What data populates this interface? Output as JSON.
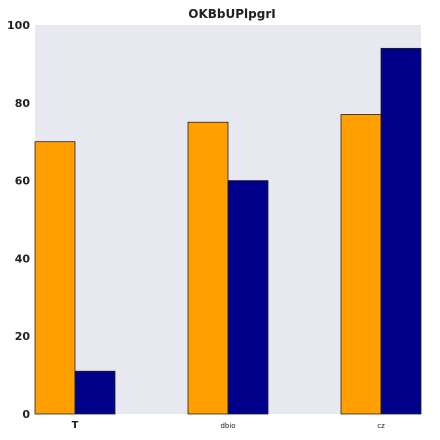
{
  "chart_data": {
    "type": "bar",
    "title": "OKBbUPlpgrI",
    "categories": [
      "T",
      "dbio",
      "cz"
    ],
    "series": [
      {
        "values": [
          70,
          75,
          77
        ],
        "color": "#FFA000"
      },
      {
        "values": [
          11,
          60,
          94
        ],
        "color": "#00008B"
      }
    ],
    "ylim": [
      0,
      100
    ],
    "yticks": [
      0,
      20,
      40,
      60,
      80,
      100
    ],
    "xlabel": "",
    "ylabel": "",
    "grid": false,
    "background": "#E8E8F1"
  }
}
